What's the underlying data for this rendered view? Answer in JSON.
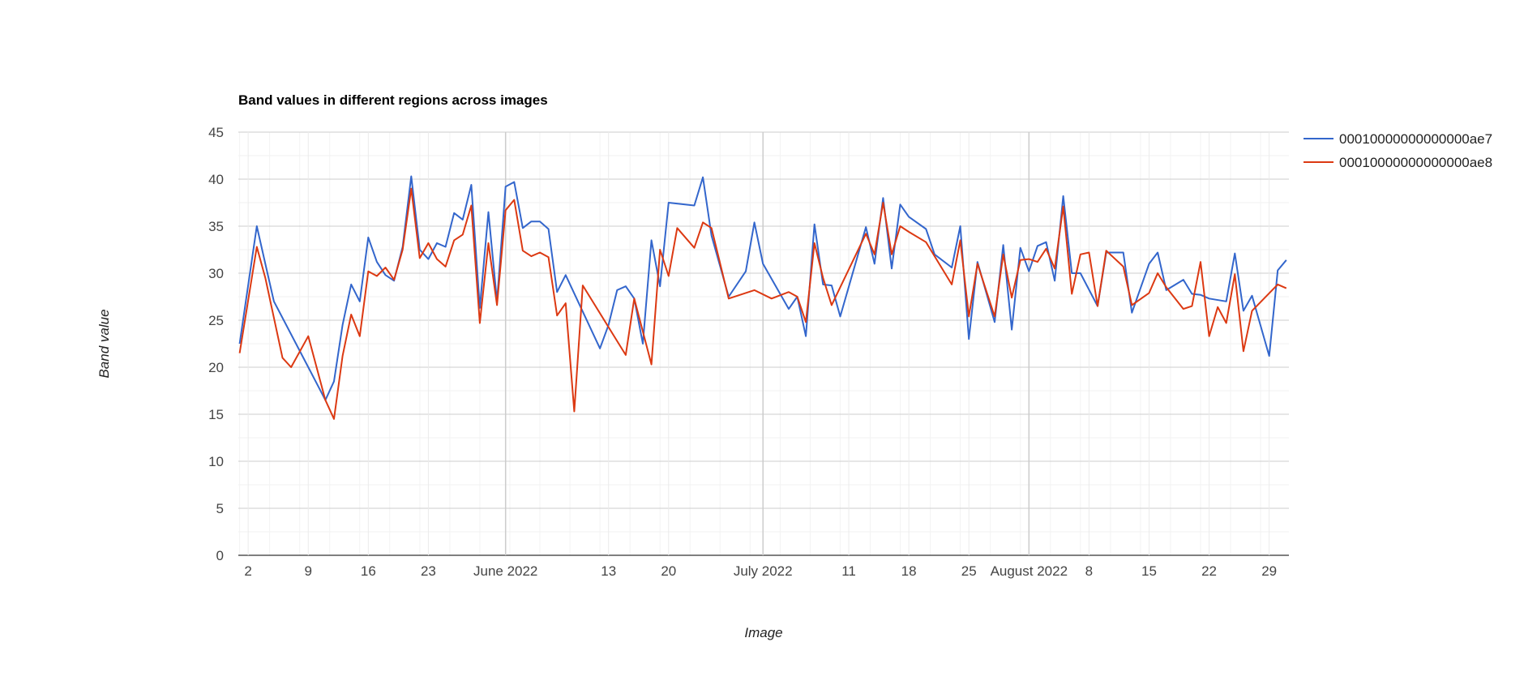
{
  "chart_data": {
    "type": "line",
    "title": "Band values in different regions across images",
    "xlabel": "Image",
    "ylabel": "Band value",
    "ylim": [
      0,
      45
    ],
    "yticks": [
      0,
      5,
      10,
      15,
      20,
      25,
      30,
      35,
      40,
      45
    ],
    "xlim": [
      "2022-05-01",
      "2022-08-31"
    ],
    "xticks": [
      {
        "date": "2022-05-02",
        "label": "2"
      },
      {
        "date": "2022-05-09",
        "label": "9"
      },
      {
        "date": "2022-05-16",
        "label": "16"
      },
      {
        "date": "2022-05-23",
        "label": "23"
      },
      {
        "date": "2022-06-01",
        "label": "June 2022"
      },
      {
        "date": "2022-06-13",
        "label": "13"
      },
      {
        "date": "2022-06-20",
        "label": "20"
      },
      {
        "date": "2022-07-01",
        "label": "July 2022"
      },
      {
        "date": "2022-07-11",
        "label": "11"
      },
      {
        "date": "2022-07-18",
        "label": "18"
      },
      {
        "date": "2022-07-25",
        "label": "25"
      },
      {
        "date": "2022-08-01",
        "label": "August 2022"
      },
      {
        "date": "2022-08-08",
        "label": "8"
      },
      {
        "date": "2022-08-15",
        "label": "15"
      },
      {
        "date": "2022-08-22",
        "label": "22"
      },
      {
        "date": "2022-08-29",
        "label": "29"
      }
    ],
    "grid": true,
    "legend_position": "right",
    "series": [
      {
        "name": "00010000000000000ae7",
        "color": "#3366cc",
        "points": [
          [
            "2022-05-01",
            22.5
          ],
          [
            "2022-05-03",
            35.0
          ],
          [
            "2022-05-04",
            31.0
          ],
          [
            "2022-05-05",
            27.0
          ],
          [
            "2022-05-09",
            20.0
          ],
          [
            "2022-05-11",
            16.5
          ],
          [
            "2022-05-12",
            18.5
          ],
          [
            "2022-05-13",
            24.5
          ],
          [
            "2022-05-14",
            28.8
          ],
          [
            "2022-05-15",
            27.0
          ],
          [
            "2022-05-16",
            33.8
          ],
          [
            "2022-05-17",
            31.2
          ],
          [
            "2022-05-18",
            29.8
          ],
          [
            "2022-05-19",
            29.2
          ],
          [
            "2022-05-20",
            32.8
          ],
          [
            "2022-05-21",
            40.3
          ],
          [
            "2022-05-22",
            32.5
          ],
          [
            "2022-05-23",
            31.5
          ],
          [
            "2022-05-24",
            33.2
          ],
          [
            "2022-05-25",
            32.8
          ],
          [
            "2022-05-26",
            36.4
          ],
          [
            "2022-05-27",
            35.7
          ],
          [
            "2022-05-28",
            39.4
          ],
          [
            "2022-05-29",
            26.3
          ],
          [
            "2022-05-30",
            36.5
          ],
          [
            "2022-05-31",
            27.0
          ],
          [
            "2022-06-01",
            39.2
          ],
          [
            "2022-06-02",
            39.7
          ],
          [
            "2022-06-03",
            34.8
          ],
          [
            "2022-06-04",
            35.5
          ],
          [
            "2022-06-05",
            35.5
          ],
          [
            "2022-06-06",
            34.7
          ],
          [
            "2022-06-07",
            28.0
          ],
          [
            "2022-06-08",
            29.8
          ],
          [
            "2022-06-12",
            22.0
          ],
          [
            "2022-06-13",
            24.5
          ],
          [
            "2022-06-14",
            28.2
          ],
          [
            "2022-06-15",
            28.6
          ],
          [
            "2022-06-16",
            27.3
          ],
          [
            "2022-06-17",
            22.5
          ],
          [
            "2022-06-18",
            33.5
          ],
          [
            "2022-06-19",
            28.6
          ],
          [
            "2022-06-20",
            37.5
          ],
          [
            "2022-06-23",
            37.2
          ],
          [
            "2022-06-24",
            40.2
          ],
          [
            "2022-06-25",
            34.0
          ],
          [
            "2022-06-27",
            27.5
          ],
          [
            "2022-06-29",
            30.2
          ],
          [
            "2022-06-30",
            35.4
          ],
          [
            "2022-07-01",
            31.0
          ],
          [
            "2022-07-04",
            26.2
          ],
          [
            "2022-07-05",
            27.5
          ],
          [
            "2022-07-06",
            23.3
          ],
          [
            "2022-07-07",
            35.2
          ],
          [
            "2022-07-08",
            28.8
          ],
          [
            "2022-07-09",
            28.7
          ],
          [
            "2022-07-10",
            25.4
          ],
          [
            "2022-07-13",
            34.9
          ],
          [
            "2022-07-14",
            31.0
          ],
          [
            "2022-07-15",
            38.0
          ],
          [
            "2022-07-16",
            30.5
          ],
          [
            "2022-07-17",
            37.3
          ],
          [
            "2022-07-18",
            36.0
          ],
          [
            "2022-07-20",
            34.7
          ],
          [
            "2022-07-21",
            32.0
          ],
          [
            "2022-07-23",
            30.6
          ],
          [
            "2022-07-24",
            35.0
          ],
          [
            "2022-07-25",
            23.0
          ],
          [
            "2022-07-26",
            31.2
          ],
          [
            "2022-07-28",
            24.8
          ],
          [
            "2022-07-29",
            33.0
          ],
          [
            "2022-07-30",
            24.0
          ],
          [
            "2022-07-31",
            32.7
          ],
          [
            "2022-08-01",
            30.2
          ],
          [
            "2022-08-02",
            32.9
          ],
          [
            "2022-08-03",
            33.3
          ],
          [
            "2022-08-04",
            29.2
          ],
          [
            "2022-08-05",
            38.2
          ],
          [
            "2022-08-06",
            30.0
          ],
          [
            "2022-08-07",
            30.0
          ],
          [
            "2022-08-09",
            26.5
          ],
          [
            "2022-08-10",
            32.2
          ],
          [
            "2022-08-12",
            32.2
          ],
          [
            "2022-08-13",
            25.8
          ],
          [
            "2022-08-15",
            31.0
          ],
          [
            "2022-08-16",
            32.2
          ],
          [
            "2022-08-17",
            28.2
          ],
          [
            "2022-08-19",
            29.3
          ],
          [
            "2022-08-20",
            27.8
          ],
          [
            "2022-08-21",
            27.7
          ],
          [
            "2022-08-22",
            27.3
          ],
          [
            "2022-08-24",
            27.0
          ],
          [
            "2022-08-25",
            32.1
          ],
          [
            "2022-08-26",
            26.0
          ],
          [
            "2022-08-27",
            27.6
          ],
          [
            "2022-08-29",
            21.2
          ],
          [
            "2022-08-30",
            30.3
          ],
          [
            "2022-08-31",
            31.4
          ]
        ]
      },
      {
        "name": "00010000000000000ae8",
        "color": "#dc3912",
        "points": [
          [
            "2022-05-01",
            21.5
          ],
          [
            "2022-05-03",
            32.8
          ],
          [
            "2022-05-04",
            29.5
          ],
          [
            "2022-05-06",
            21.0
          ],
          [
            "2022-05-07",
            20.0
          ],
          [
            "2022-05-09",
            23.3
          ],
          [
            "2022-05-11",
            16.5
          ],
          [
            "2022-05-12",
            14.5
          ],
          [
            "2022-05-13",
            21.2
          ],
          [
            "2022-05-14",
            25.6
          ],
          [
            "2022-05-15",
            23.3
          ],
          [
            "2022-05-16",
            30.2
          ],
          [
            "2022-05-17",
            29.7
          ],
          [
            "2022-05-18",
            30.6
          ],
          [
            "2022-05-19",
            29.3
          ],
          [
            "2022-05-20",
            32.5
          ],
          [
            "2022-05-21",
            39.0
          ],
          [
            "2022-05-22",
            31.6
          ],
          [
            "2022-05-23",
            33.2
          ],
          [
            "2022-05-24",
            31.5
          ],
          [
            "2022-05-25",
            30.7
          ],
          [
            "2022-05-26",
            33.5
          ],
          [
            "2022-05-27",
            34.1
          ],
          [
            "2022-05-28",
            37.2
          ],
          [
            "2022-05-29",
            24.7
          ],
          [
            "2022-05-30",
            33.2
          ],
          [
            "2022-05-31",
            26.6
          ],
          [
            "2022-06-01",
            36.7
          ],
          [
            "2022-06-02",
            37.8
          ],
          [
            "2022-06-03",
            32.4
          ],
          [
            "2022-06-04",
            31.8
          ],
          [
            "2022-06-05",
            32.2
          ],
          [
            "2022-06-06",
            31.7
          ],
          [
            "2022-06-07",
            25.5
          ],
          [
            "2022-06-08",
            26.8
          ],
          [
            "2022-06-09",
            15.3
          ],
          [
            "2022-06-10",
            28.7
          ],
          [
            "2022-06-15",
            21.3
          ],
          [
            "2022-06-16",
            27.3
          ],
          [
            "2022-06-18",
            20.3
          ],
          [
            "2022-06-19",
            32.5
          ],
          [
            "2022-06-20",
            29.7
          ],
          [
            "2022-06-21",
            34.8
          ],
          [
            "2022-06-23",
            32.7
          ],
          [
            "2022-06-24",
            35.4
          ],
          [
            "2022-06-25",
            34.8
          ],
          [
            "2022-06-27",
            27.3
          ],
          [
            "2022-06-30",
            28.2
          ],
          [
            "2022-07-02",
            27.3
          ],
          [
            "2022-07-04",
            28.0
          ],
          [
            "2022-07-05",
            27.5
          ],
          [
            "2022-07-06",
            24.8
          ],
          [
            "2022-07-07",
            33.2
          ],
          [
            "2022-07-08",
            29.5
          ],
          [
            "2022-07-09",
            26.6
          ],
          [
            "2022-07-13",
            34.2
          ],
          [
            "2022-07-14",
            32.0
          ],
          [
            "2022-07-15",
            37.5
          ],
          [
            "2022-07-16",
            32.0
          ],
          [
            "2022-07-17",
            35.0
          ],
          [
            "2022-07-18",
            34.4
          ],
          [
            "2022-07-20",
            33.3
          ],
          [
            "2022-07-23",
            28.8
          ],
          [
            "2022-07-24",
            33.5
          ],
          [
            "2022-07-25",
            25.4
          ],
          [
            "2022-07-26",
            31.0
          ],
          [
            "2022-07-28",
            25.4
          ],
          [
            "2022-07-29",
            32.0
          ],
          [
            "2022-07-30",
            27.4
          ],
          [
            "2022-07-31",
            31.4
          ],
          [
            "2022-08-01",
            31.5
          ],
          [
            "2022-08-02",
            31.2
          ],
          [
            "2022-08-03",
            32.6
          ],
          [
            "2022-08-04",
            30.5
          ],
          [
            "2022-08-05",
            37.1
          ],
          [
            "2022-08-06",
            27.8
          ],
          [
            "2022-08-07",
            32.0
          ],
          [
            "2022-08-08",
            32.2
          ],
          [
            "2022-08-09",
            26.5
          ],
          [
            "2022-08-10",
            32.4
          ],
          [
            "2022-08-12",
            30.7
          ],
          [
            "2022-08-13",
            26.6
          ],
          [
            "2022-08-15",
            27.9
          ],
          [
            "2022-08-16",
            30.0
          ],
          [
            "2022-08-17",
            28.5
          ],
          [
            "2022-08-19",
            26.2
          ],
          [
            "2022-08-20",
            26.5
          ],
          [
            "2022-08-21",
            31.2
          ],
          [
            "2022-08-22",
            23.3
          ],
          [
            "2022-08-23",
            26.4
          ],
          [
            "2022-08-24",
            24.7
          ],
          [
            "2022-08-25",
            29.9
          ],
          [
            "2022-08-26",
            21.7
          ],
          [
            "2022-08-27",
            26.0
          ],
          [
            "2022-08-30",
            28.8
          ],
          [
            "2022-08-31",
            28.4
          ]
        ]
      }
    ]
  }
}
